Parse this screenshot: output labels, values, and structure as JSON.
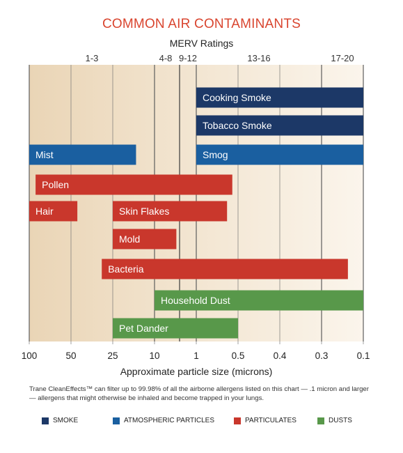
{
  "title": "COMMON AIR CONTAMINANTS",
  "merv_title": "MERV Ratings",
  "footnote": "Trane CleanEffects™ can filter up to 99.98% of all the airborne allergens listed on this chart — .1 micron and larger — allergens that might otherwise be inhaled and become trapped in your lungs.",
  "colors": {
    "smoke": "#1c3867",
    "atmospheric": "#1a5fa0",
    "particulates": "#c9372c",
    "dusts": "#58984a"
  },
  "legend": [
    {
      "label": "SMOKE",
      "color": "#1c3867"
    },
    {
      "label": "ATMOSPHERIC PARTICLES",
      "color": "#1a5fa0"
    },
    {
      "label": "PARTICULATES",
      "color": "#c9372c"
    },
    {
      "label": "DUSTS",
      "color": "#58984a"
    }
  ],
  "chart_data": {
    "type": "bar",
    "orientation": "horizontal-range",
    "xlabel": "Approximate particle size (microns)",
    "x_ticks": [
      "100",
      "50",
      "25",
      "10",
      "1",
      "0.5",
      "0.4",
      "0.3",
      "0.1"
    ],
    "merv_bands": [
      {
        "label": "1-3",
        "from": "100",
        "to": "10"
      },
      {
        "label": "4-8",
        "from": "10",
        "to": "~3"
      },
      {
        "label": "9-12",
        "from": "~3",
        "to": "1"
      },
      {
        "label": "13-16",
        "from": "1",
        "to": "0.3"
      },
      {
        "label": "17-20",
        "from": "0.3",
        "to": "0.1"
      }
    ],
    "bars": [
      {
        "label": "Cooking Smoke",
        "category": "smoke",
        "from": 1,
        "to": 0.1
      },
      {
        "label": "Tobacco Smoke",
        "category": "smoke",
        "from": 1,
        "to": 0.1
      },
      {
        "label": "Mist",
        "category": "atmospheric",
        "from": 100,
        "to": 15
      },
      {
        "label": "Smog",
        "category": "atmospheric",
        "from": 1,
        "to": 0.1
      },
      {
        "label": "Pollen",
        "category": "particulates",
        "from": 90,
        "to": 0.55
      },
      {
        "label": "Hair",
        "category": "particulates",
        "from": 100,
        "to": 45
      },
      {
        "label": "Skin Flakes",
        "category": "particulates",
        "from": 25,
        "to": 0.6
      },
      {
        "label": "Mold",
        "category": "particulates",
        "from": 25,
        "to": 3
      },
      {
        "label": "Bacteria",
        "category": "particulates",
        "from": 30,
        "to": 0.15
      },
      {
        "label": "Household Dust",
        "category": "dusts",
        "from": 10,
        "to": 0.1
      },
      {
        "label": "Pet Dander",
        "category": "dusts",
        "from": 25,
        "to": 0.5
      }
    ]
  }
}
